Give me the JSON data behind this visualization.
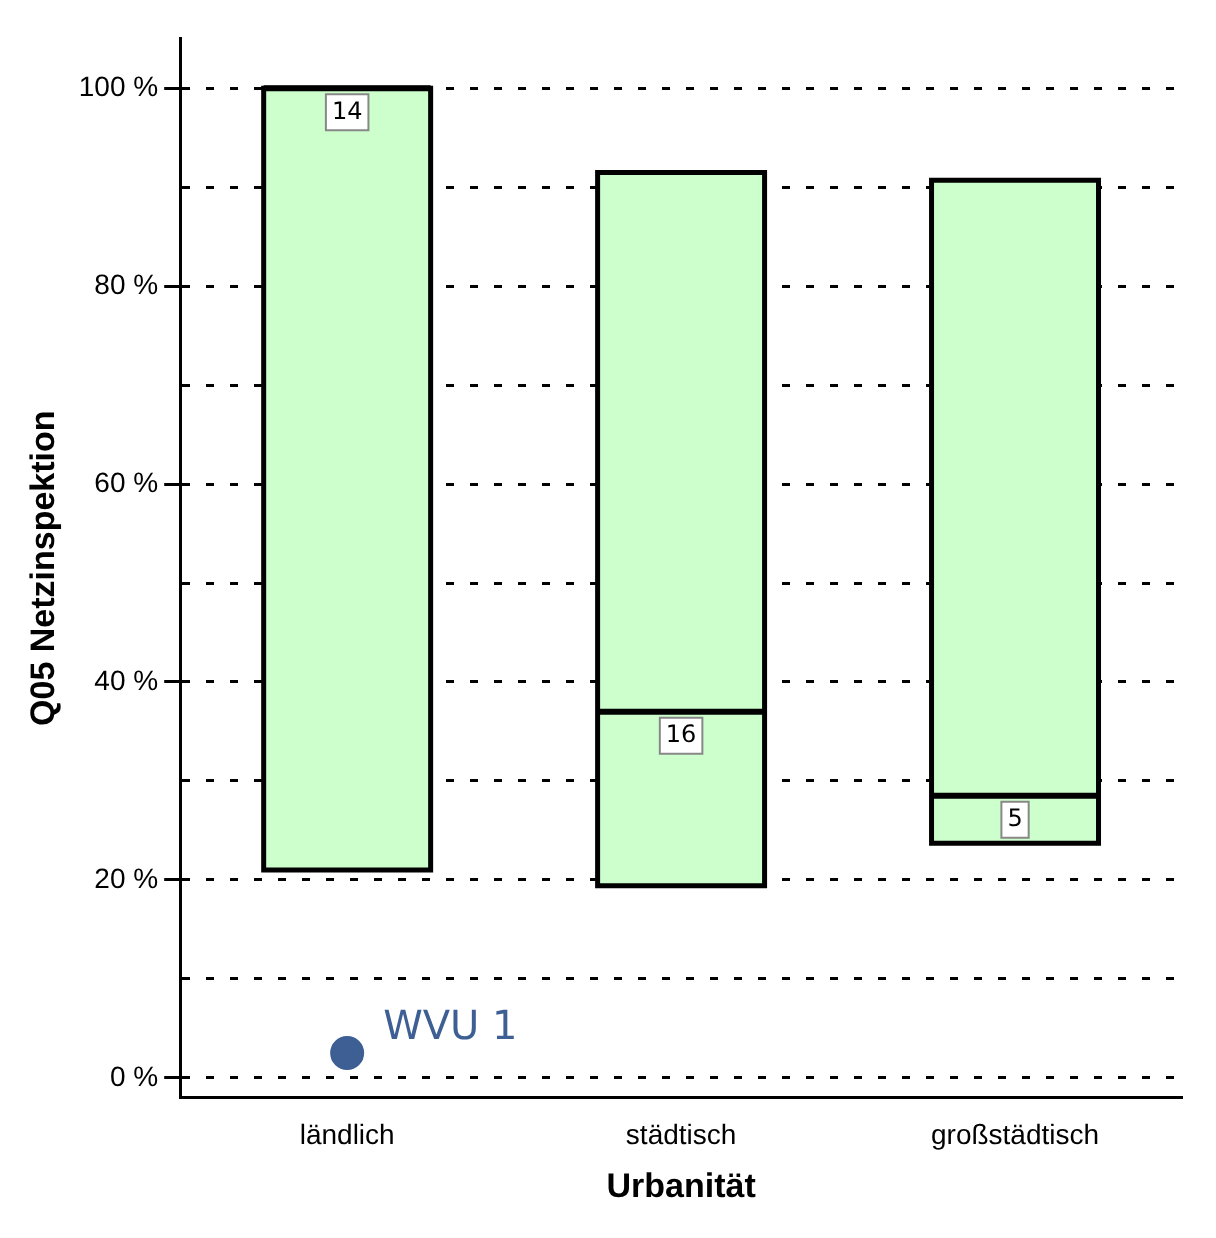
{
  "chart_data": {
    "type": "box",
    "xlabel": "Urbanität",
    "ylabel": "Q05 Netzinspektion",
    "categories": [
      "ländlich",
      "städtisch",
      "großstädtisch"
    ],
    "boxes": [
      {
        "low": 21,
        "q1": 21,
        "median": 100,
        "q3": 100,
        "high": 100
      },
      {
        "low": 19.4,
        "q1": 19.4,
        "median": 37,
        "q3": 91.5,
        "high": 91.5
      },
      {
        "low": 23.7,
        "q1": 23.7,
        "median": 28.5,
        "q3": 90.7,
        "high": 90.7
      }
    ],
    "color": "#ccffcc",
    "series": [
      {
        "type": "scatter",
        "name": "WVU 1",
        "color": "#3d5f94",
        "x": [
          "ländlich"
        ],
        "values": [
          2.5
        ]
      }
    ],
    "annotations": [
      {
        "text": "14",
        "x": "ländlich",
        "y": 100
      },
      {
        "text": "16",
        "x": "städtisch",
        "y": 37
      },
      {
        "text": "5",
        "x": "großstädtisch",
        "y": 28.5
      }
    ],
    "ylim": [
      -2,
      105
    ],
    "yticks": [
      {
        "value": 0,
        "label": "0 %"
      },
      {
        "value": 10,
        "label": null
      },
      {
        "value": 20,
        "label": "20 %"
      },
      {
        "value": 30,
        "label": null
      },
      {
        "value": 40,
        "label": "40 %"
      },
      {
        "value": 50,
        "label": null
      },
      {
        "value": 60,
        "label": "60 %"
      },
      {
        "value": 70,
        "label": null
      },
      {
        "value": 80,
        "label": "80 %"
      },
      {
        "value": 90,
        "label": null
      },
      {
        "value": 100,
        "label": "100 %"
      }
    ],
    "grid": "y",
    "legend": false,
    "marker": "circle"
  }
}
